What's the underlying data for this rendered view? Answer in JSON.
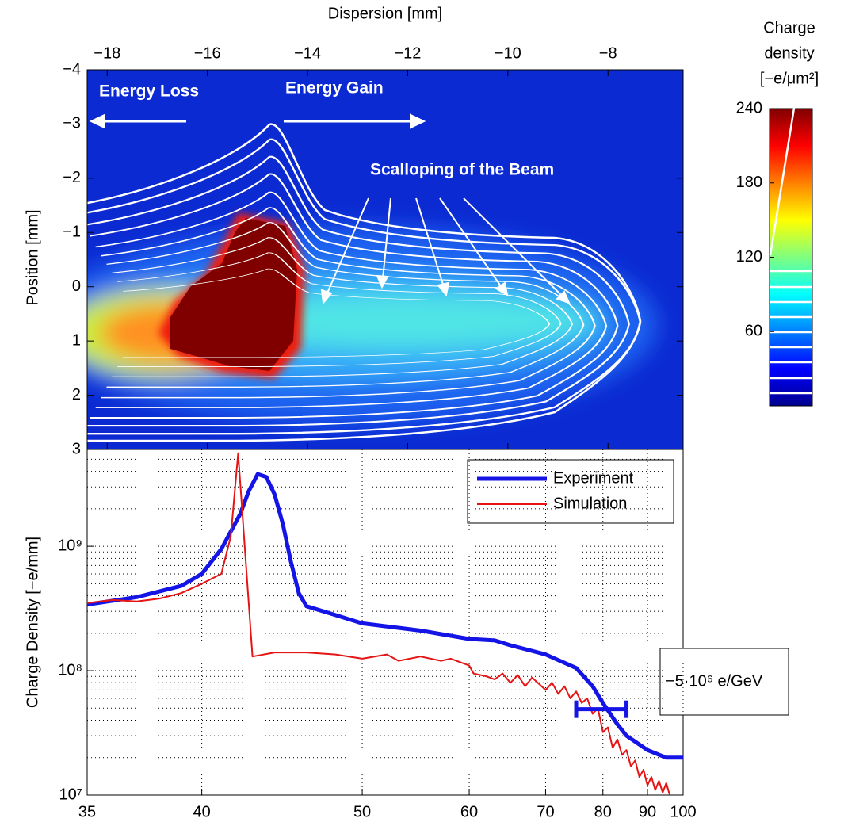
{
  "chart_data": [
    {
      "type": "heatmap",
      "xlabel": "Dispersion [mm]",
      "ylabel": "Position [mm]",
      "xlim": [
        -18.4,
        -6.5
      ],
      "xticks": [
        {
          "value": -18,
          "label": "−18"
        },
        {
          "value": -16,
          "label": "−16"
        },
        {
          "value": -14,
          "label": "−14"
        },
        {
          "value": -12,
          "label": "−12"
        },
        {
          "value": -10,
          "label": "−10"
        },
        {
          "value": -8,
          "label": "−8"
        }
      ],
      "ylim": [
        -4,
        3
      ],
      "yticks": [
        {
          "value": -4,
          "label": "−4"
        },
        {
          "value": -3,
          "label": "−3"
        },
        {
          "value": -2,
          "label": "−2"
        },
        {
          "value": -1,
          "label": "−1"
        },
        0,
        1,
        2,
        3
      ],
      "annotations": [
        "Energy Loss",
        "Energy Gain",
        "Scalloping of the Beam"
      ],
      "colorbar": {
        "title": [
          "Charge",
          "density",
          "[−e/μm²]"
        ],
        "lim": [
          0,
          240
        ],
        "ticks": [
          60,
          120,
          180,
          240
        ],
        "colormap": "jet"
      }
    },
    {
      "type": "line",
      "ylabel": "Charge Density [−e/mm]",
      "xscale": "reciprocal",
      "yscale": "log",
      "xlim": [
        35,
        100
      ],
      "xticks": [
        35,
        40,
        50,
        60,
        70,
        80,
        90,
        100
      ],
      "ylim": [
        10000000.0,
        6000000000.0
      ],
      "yticks": [
        {
          "value": 10000000.0,
          "label": "10⁷"
        },
        {
          "value": 100000000.0,
          "label": "10⁸"
        },
        {
          "value": 1000000000.0,
          "label": "10⁹"
        }
      ],
      "yminorticks": [
        20000000.0,
        30000000.0,
        40000000.0,
        50000000.0,
        60000000.0,
        70000000.0,
        80000000.0,
        90000000.0,
        200000000.0,
        300000000.0,
        400000000.0,
        500000000.0,
        600000000.0,
        700000000.0,
        800000000.0,
        900000000.0,
        2000000000.0,
        3000000000.0,
        4000000000.0,
        5000000000.0
      ],
      "grid": true,
      "legend": "upper right",
      "series": [
        {
          "name": "Experiment",
          "color": "#1414e6",
          "x": [
            35,
            37,
            39,
            40,
            41,
            42,
            42.5,
            43,
            43.5,
            44,
            44.5,
            45,
            45.5,
            46,
            48,
            50,
            55,
            60,
            63,
            65,
            70,
            75,
            78,
            80,
            83,
            85,
            90,
            95,
            100
          ],
          "values": [
            340000000.0,
            390000000.0,
            480000000.0,
            600000000.0,
            950000000.0,
            1800000000.0,
            2800000000.0,
            3800000000.0,
            3600000000.0,
            2600000000.0,
            1500000000.0,
            750000000.0,
            420000000.0,
            330000000.0,
            280000000.0,
            240000000.0,
            210000000.0,
            180000000.0,
            175000000.0,
            160000000.0,
            135000000.0,
            105000000.0,
            75000000.0,
            55000000.0,
            37000000.0,
            30000000.0,
            23000000.0,
            20000000.0,
            20000000.0
          ]
        },
        {
          "name": "Simulation",
          "color": "#e61414",
          "x": [
            35,
            36,
            37,
            38,
            39,
            40,
            41,
            41.5,
            41.9,
            42.7,
            44,
            46,
            48,
            50,
            52,
            53,
            55,
            57,
            58,
            60,
            60.5,
            62,
            63,
            64,
            65,
            66,
            67,
            68,
            70,
            71,
            72,
            73,
            74,
            75,
            76,
            77,
            78,
            79,
            80,
            81,
            82,
            83,
            84,
            85,
            86,
            87,
            88,
            89,
            90,
            91,
            92,
            93,
            94,
            95,
            96
          ],
          "values": [
            350000000.0,
            370000000.0,
            360000000.0,
            380000000.0,
            420000000.0,
            500000000.0,
            600000000.0,
            1200000000.0,
            5600000000.0,
            130000000.0,
            140000000.0,
            140000000.0,
            135000000.0,
            125000000.0,
            135000000.0,
            120000000.0,
            130000000.0,
            120000000.0,
            125000000.0,
            110000000.0,
            95000000.0,
            90000000.0,
            85000000.0,
            95000000.0,
            80000000.0,
            92000000.0,
            75000000.0,
            88000000.0,
            70000000.0,
            80000000.0,
            65000000.0,
            75000000.0,
            60000000.0,
            68000000.0,
            55000000.0,
            60000000.0,
            45000000.0,
            50000000.0,
            32000000.0,
            35000000.0,
            24000000.0,
            28000000.0,
            21000000.0,
            23000000.0,
            17000000.0,
            19000000.0,
            14000000.0,
            16000000.0,
            12000000.0,
            14000000.0,
            11000000.0,
            13000000.0,
            10500000.0,
            12500000.0,
            10000000.0
          ]
        }
      ],
      "annotation": {
        "text": "−5·10⁶ e/GeV",
        "bar_x": [
          75,
          85
        ],
        "bar_y": 49000000.0,
        "color": "#1414e6"
      }
    }
  ]
}
